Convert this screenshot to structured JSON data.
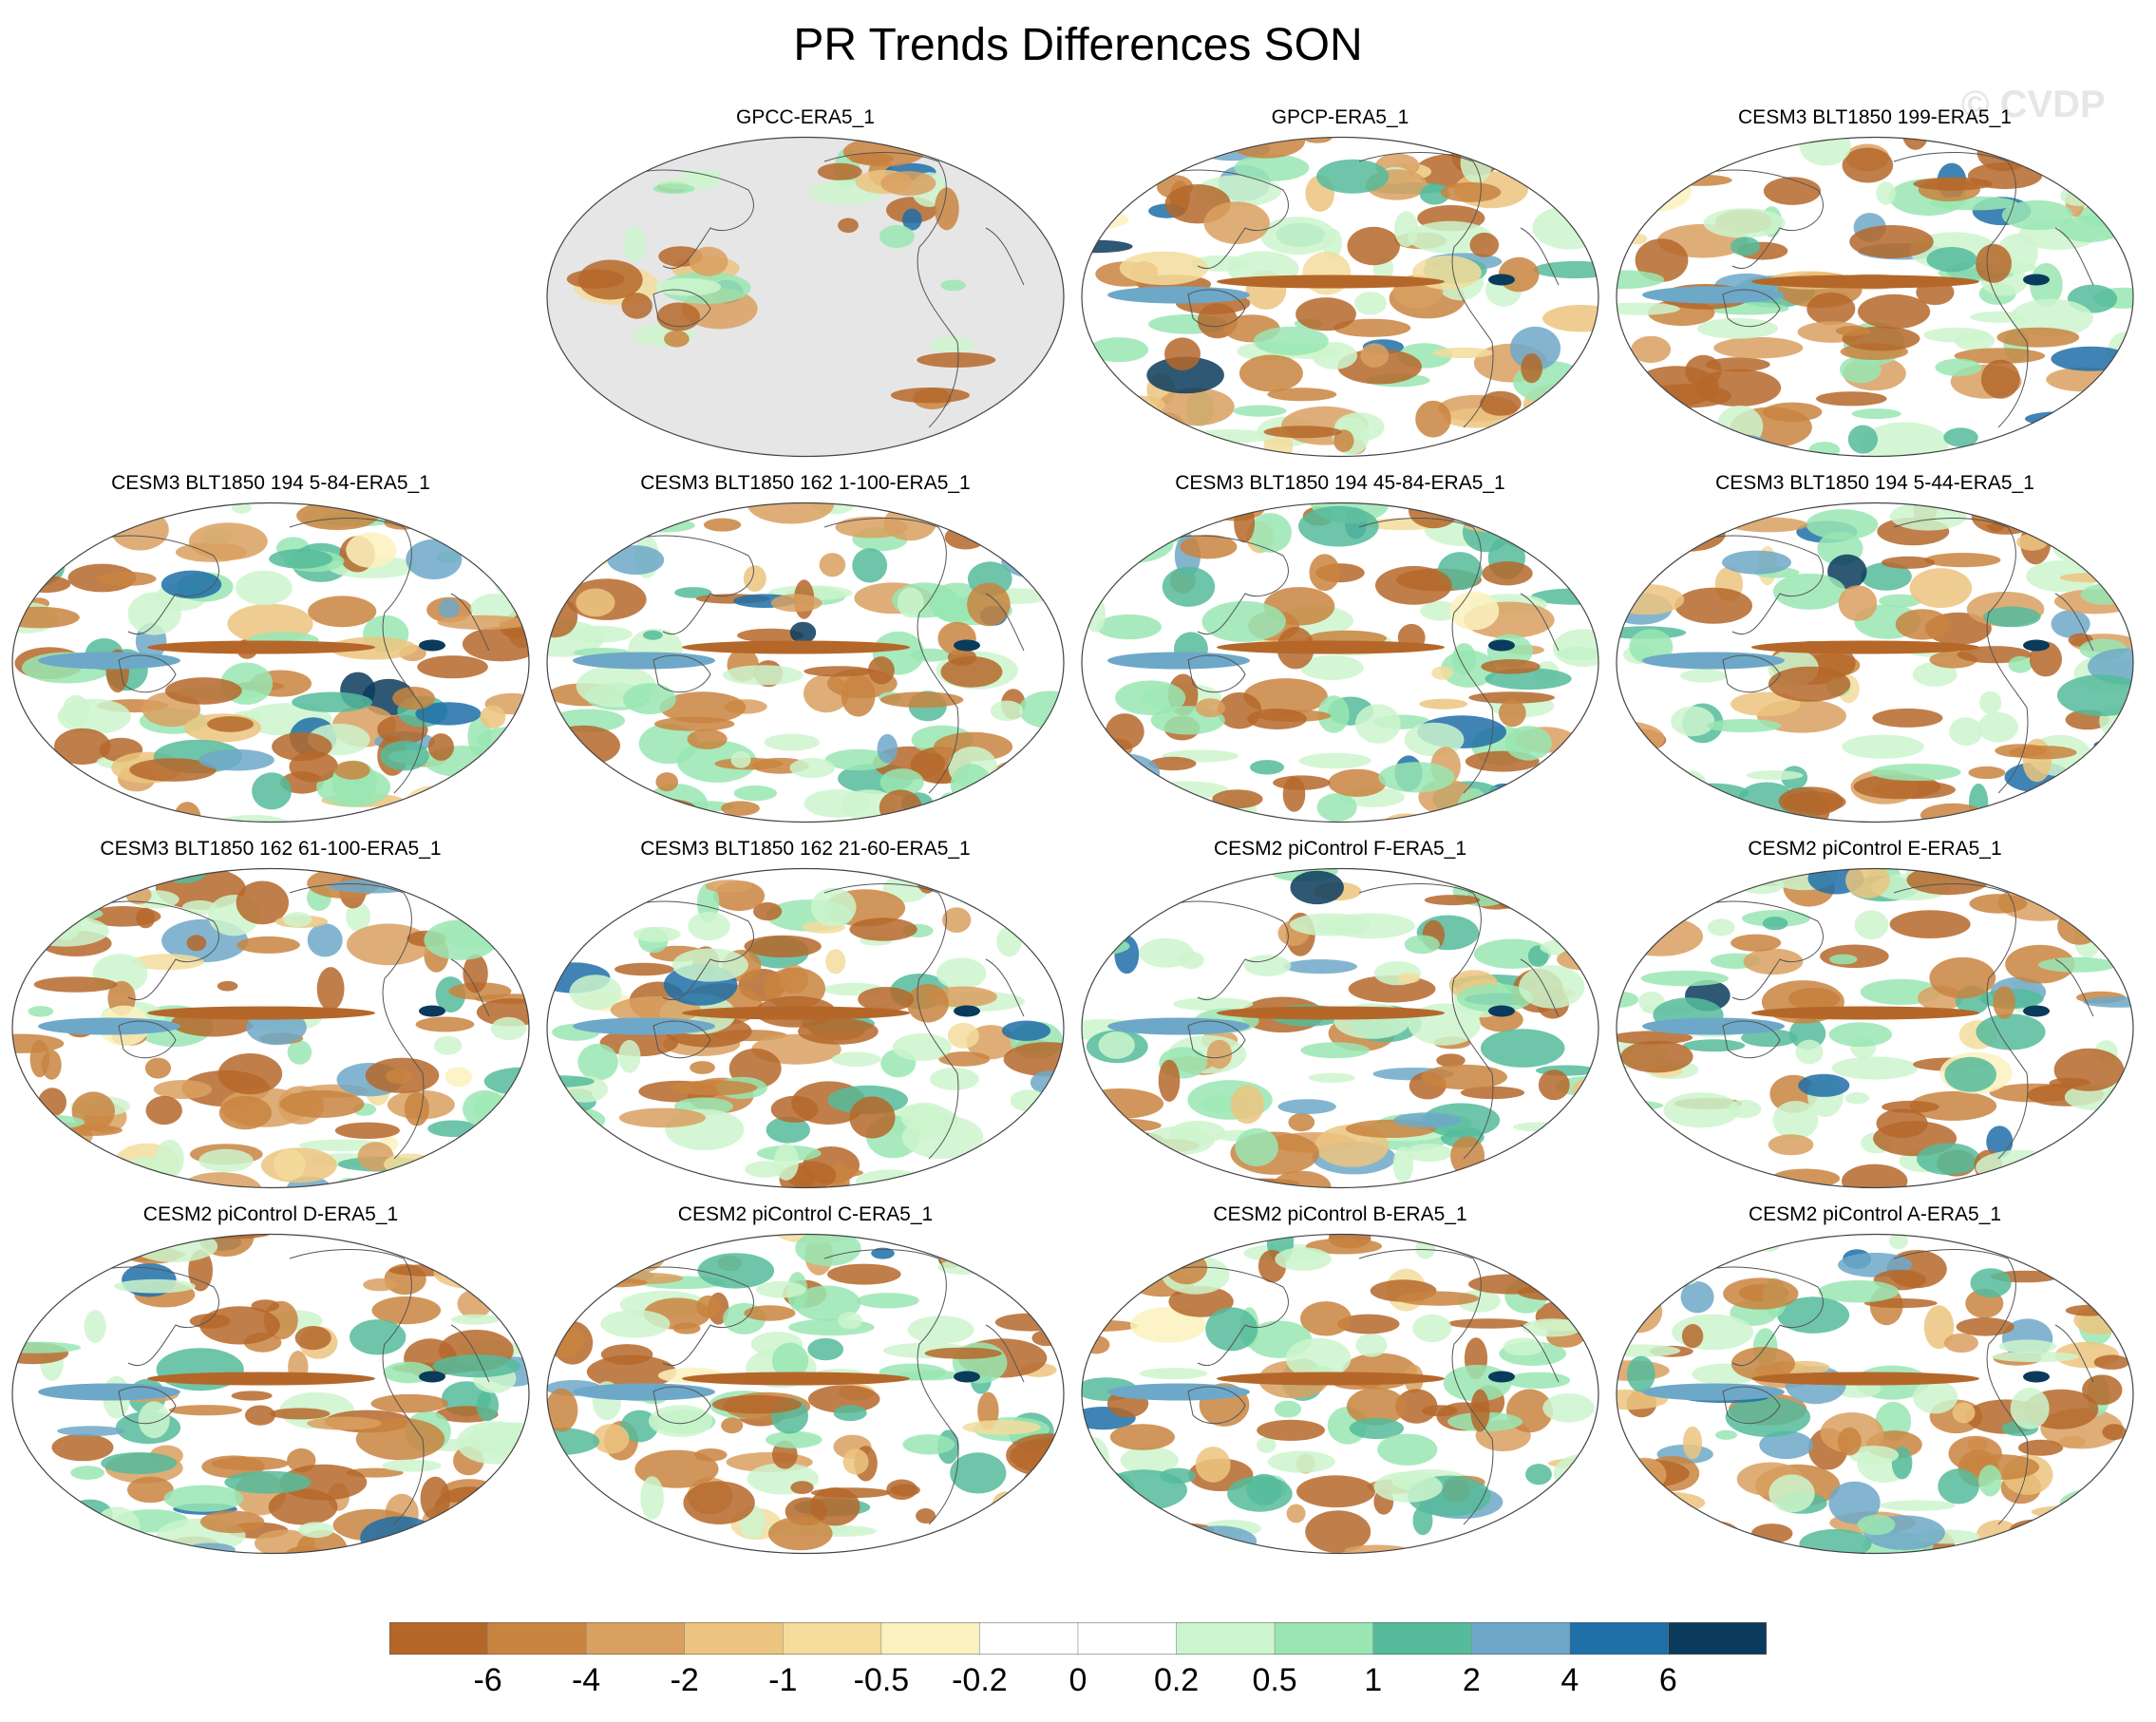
{
  "title": "PR Trends Differences SON",
  "watermark": "© CVDP",
  "panels": [
    {
      "label": "GPCC-ERA5_1",
      "coverage": "land-only"
    },
    {
      "label": "GPCP-ERA5_1",
      "coverage": "global"
    },
    {
      "label": "CESM3 BLT1850 199-ERA5_1",
      "coverage": "global"
    },
    {
      "label": "CESM3 BLT1850 194 5-84-ERA5_1",
      "coverage": "global"
    },
    {
      "label": "CESM3 BLT1850 162 1-100-ERA5_1",
      "coverage": "global"
    },
    {
      "label": "CESM3 BLT1850 194 45-84-ERA5_1",
      "coverage": "global"
    },
    {
      "label": "CESM3 BLT1850 194 5-44-ERA5_1",
      "coverage": "global"
    },
    {
      "label": "CESM3 BLT1850 162 61-100-ERA5_1",
      "coverage": "global"
    },
    {
      "label": "CESM3 BLT1850 162 21-60-ERA5_1",
      "coverage": "global"
    },
    {
      "label": "CESM2 piControl F-ERA5_1",
      "coverage": "global"
    },
    {
      "label": "CESM2 piControl E-ERA5_1",
      "coverage": "global"
    },
    {
      "label": "CESM2 piControl D-ERA5_1",
      "coverage": "global"
    },
    {
      "label": "CESM2 piControl C-ERA5_1",
      "coverage": "global"
    },
    {
      "label": "CESM2 piControl B-ERA5_1",
      "coverage": "global"
    },
    {
      "label": "CESM2 piControl A-ERA5_1",
      "coverage": "global"
    }
  ],
  "colorbar": {
    "levels": [
      "-6",
      "-4",
      "-2",
      "-1",
      "-0.5",
      "-0.2",
      "0",
      "0.2",
      "0.5",
      "1",
      "2",
      "4",
      "6"
    ],
    "colors": [
      "#b5672a",
      "#c98440",
      "#d9a060",
      "#ecc47f",
      "#f3dc9c",
      "#fbf1be",
      "#ffffff",
      "#ffffff",
      "#cdf5cd",
      "#99e6b3",
      "#55bb9b",
      "#6ea8c8",
      "#1f6fa8",
      "#0b3b5c"
    ],
    "missing_color": "#e6e6e6"
  }
}
